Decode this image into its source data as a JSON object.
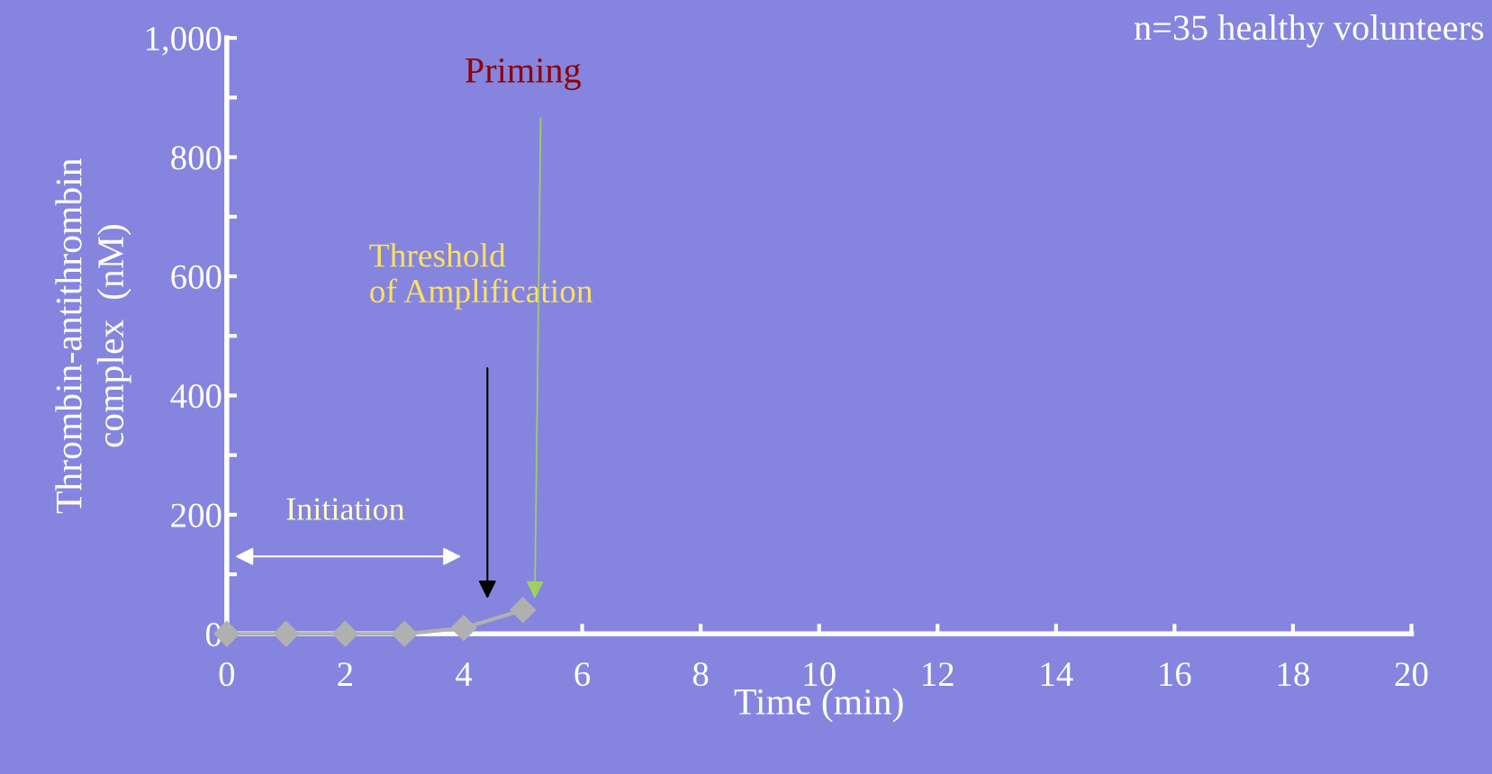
{
  "chart_data": {
    "type": "line",
    "title": "n=35 healthy volunteers",
    "xlabel": "Time (min)",
    "ylabel": "Thrombin-antithrombin\ncomplex  (nM)",
    "x": [
      0,
      1,
      2,
      3,
      4,
      5
    ],
    "series": [
      {
        "color": "#b0b0b0",
        "values": [
          0,
          0,
          0,
          0,
          10,
          40
        ]
      }
    ],
    "marker": "diamond",
    "line_style": "solid",
    "grid": false,
    "xlim": [
      0,
      20
    ],
    "xticks": [
      0,
      2,
      4,
      6,
      8,
      10,
      12,
      14,
      16,
      18,
      20
    ],
    "ylim": [
      0,
      1000
    ],
    "yticks": [
      0,
      {
        "value": 100,
        "label": null
      },
      200,
      {
        "value": 300,
        "label": null
      },
      400,
      {
        "value": 500,
        "label": null
      },
      600,
      {
        "value": 700,
        "label": null
      },
      800,
      {
        "value": 900,
        "label": null
      },
      {
        "value": 1000,
        "label": "1,000"
      }
    ],
    "annotations": [
      "Initiation",
      "Threshold\nof Amplification",
      "Priming"
    ]
  }
}
